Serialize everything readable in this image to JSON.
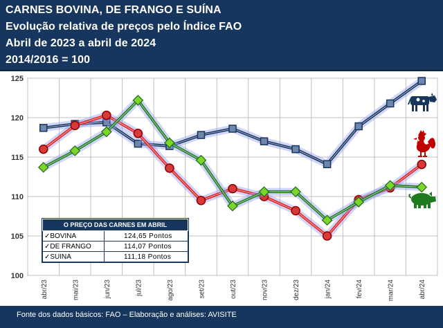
{
  "header": {
    "line1": "CARNES BOVINA, DE FRANGO E SUÍNA",
    "line2": "Evolução relativa de preços pelo Índice FAO",
    "line3": "Abril de 2023 a abril de 2024",
    "line4": "2014/2016 = 100"
  },
  "footer": "Fonte dos dados básicos: FAO – Elaboração e análises: AVISITE",
  "price_box": {
    "title": "O PREÇO DAS CARNES EM ABRIL",
    "rows": [
      {
        "label": "✓BOVINA",
        "value": "124,65 Pontos"
      },
      {
        "label": "✓DE FRANGO",
        "value": "114,07 Pontos"
      },
      {
        "label": "✓SUINA",
        "value": "111,18 Pontos"
      }
    ]
  },
  "icons": [
    "cow-icon",
    "rooster-icon",
    "pig-icon"
  ],
  "chart_data": {
    "type": "line",
    "categories": [
      "abr/23",
      "mai/23",
      "jun/23",
      "jul/23",
      "ago/23",
      "set/23",
      "out/23",
      "nov/23",
      "dez/23",
      "jan/24",
      "fev/24",
      "mar/24",
      "abr/24"
    ],
    "ylim": [
      100,
      125
    ],
    "yticks": [
      100,
      105,
      110,
      115,
      120,
      125
    ],
    "grid": true,
    "series": [
      {
        "name": "BOVINA",
        "color": "#17365d",
        "marker": "square",
        "values": [
          118.7,
          119.2,
          119.4,
          116.7,
          116.4,
          117.8,
          118.6,
          117.0,
          116.0,
          114.1,
          118.9,
          121.8,
          124.65
        ]
      },
      {
        "name": "DE FRANGO",
        "color": "#e02020",
        "marker": "circle",
        "values": [
          116.0,
          119.0,
          120.3,
          118.0,
          113.6,
          109.5,
          111.0,
          110.0,
          108.2,
          105.0,
          109.6,
          111.1,
          114.07
        ]
      },
      {
        "name": "SUINA",
        "color": "#1e7a1e",
        "marker": "diamond",
        "values": [
          113.7,
          115.8,
          118.2,
          122.2,
          116.8,
          114.6,
          108.8,
          110.6,
          110.6,
          107.0,
          109.3,
          111.4,
          111.18
        ]
      }
    ]
  }
}
